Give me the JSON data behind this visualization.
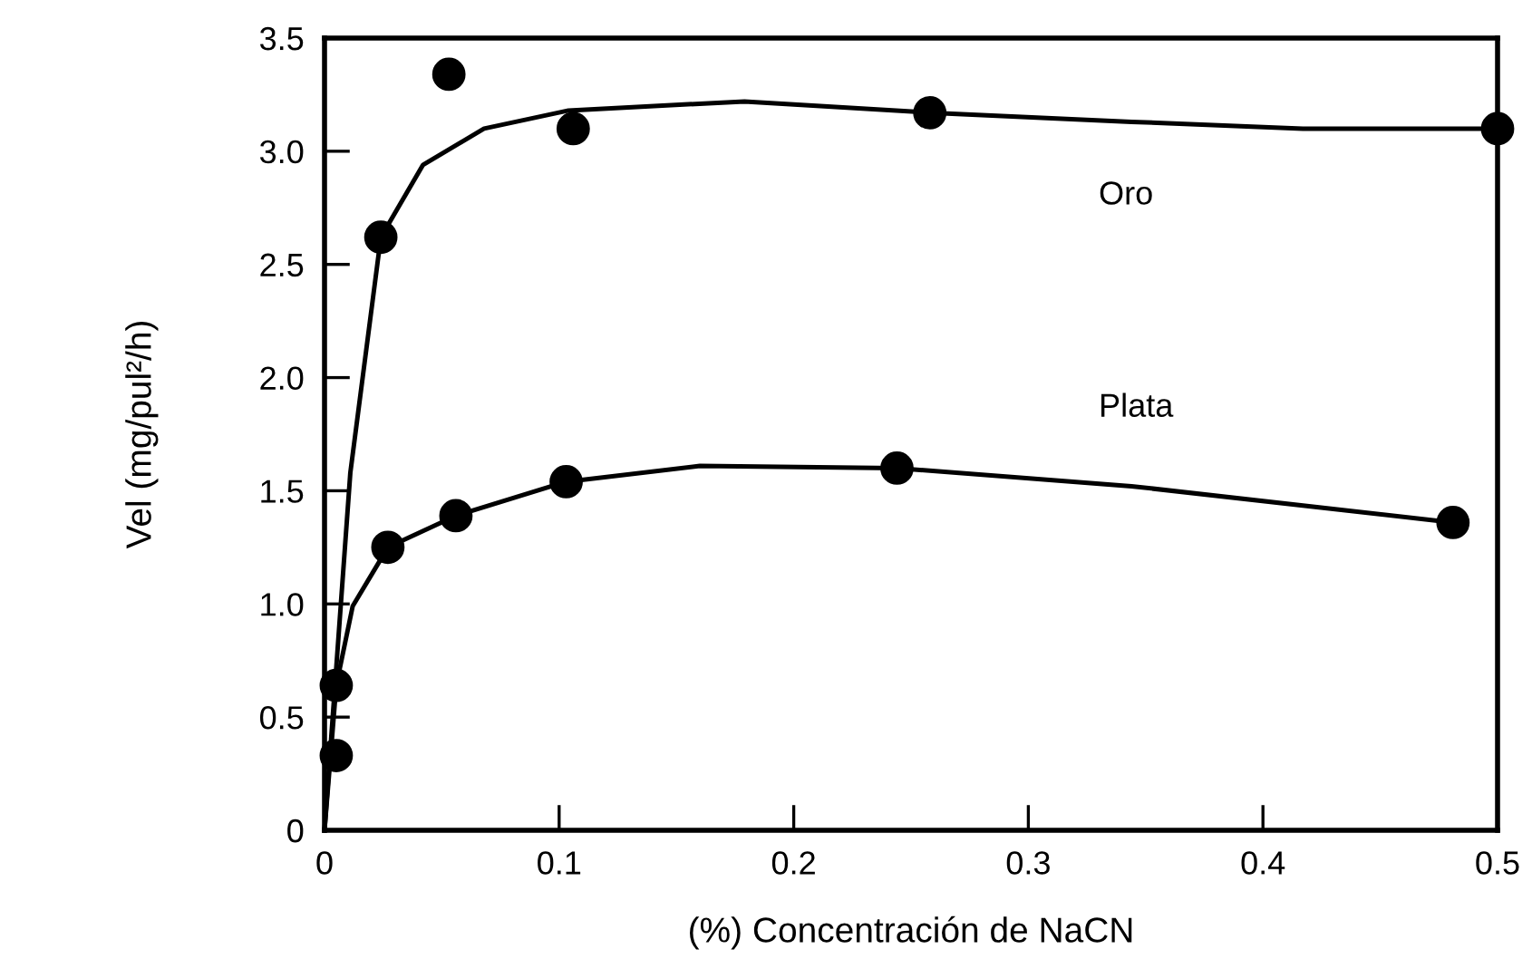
{
  "chart_data": {
    "type": "scatter",
    "xlabel": "(%) Concentración de NaCN",
    "ylabel": "Vel (mg/pul²/h)",
    "xlim": [
      0,
      0.5
    ],
    "ylim": [
      0,
      3.5
    ],
    "xticks": [
      0,
      0.1,
      0.2,
      0.3,
      0.4,
      {
        "value": 0.5,
        "label": "0.5"
      }
    ],
    "yticks": [
      0,
      0.5,
      {
        "value": 1,
        "label": "1.0"
      },
      1.5,
      {
        "value": 2,
        "label": "2.0"
      },
      2.5,
      {
        "value": 3,
        "label": "3.0"
      },
      3.5
    ],
    "grid": false,
    "marker": "circle",
    "series": [
      {
        "color": "#000000",
        "x": [
          0.005,
          0.024,
          0.053,
          0.106,
          0.258,
          0.5
        ],
        "values": [
          0.33,
          2.62,
          3.34,
          3.1,
          3.17,
          3.1
        ]
      },
      {
        "color": "#000000",
        "x": [
          0.005,
          0.027,
          0.056,
          0.103,
          0.244,
          0.481
        ],
        "values": [
          0.64,
          1.25,
          1.39,
          1.54,
          1.6,
          1.36
        ]
      },
      {
        "type": "line",
        "name": "Oro",
        "color": "#000000",
        "line_style": "solid",
        "marker": "none",
        "x": [
          0,
          0.011,
          0.024,
          0.042,
          0.068,
          0.104,
          0.179,
          0.259,
          0.344,
          0.417,
          0.5
        ],
        "values": [
          0,
          1.58,
          2.62,
          2.94,
          3.1,
          3.18,
          3.22,
          3.17,
          3.13,
          3.1,
          3.1
        ]
      },
      {
        "type": "line",
        "name": "Plata",
        "color": "#000000",
        "line_style": "solid",
        "marker": "none",
        "x": [
          0,
          0.005,
          0.012,
          0.027,
          0.056,
          0.103,
          0.16,
          0.244,
          0.344,
          0.481
        ],
        "values": [
          0,
          0.64,
          0.99,
          1.25,
          1.39,
          1.54,
          1.61,
          1.6,
          1.52,
          1.36
        ]
      }
    ]
  }
}
